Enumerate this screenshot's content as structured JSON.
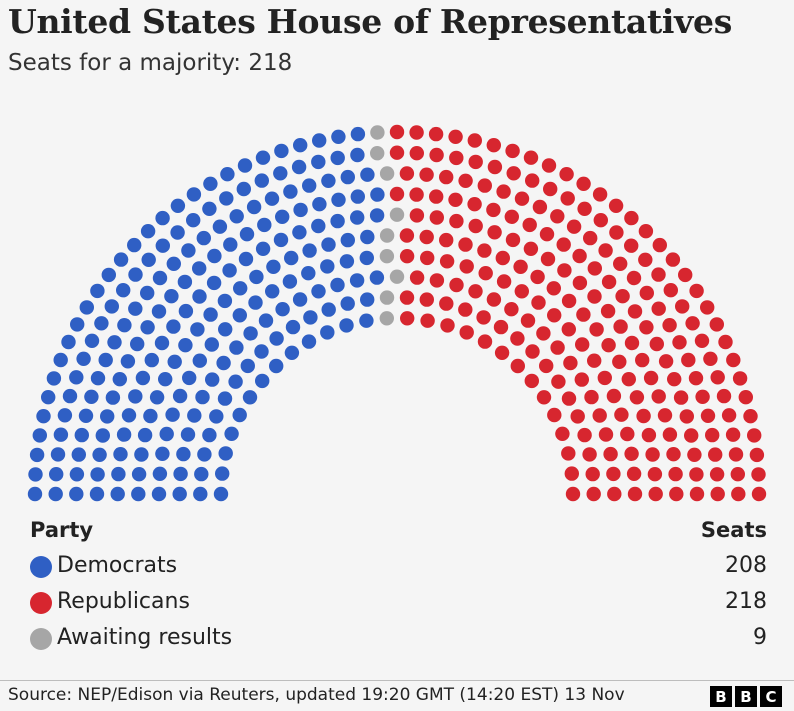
{
  "title": "United States House of Representatives",
  "subtitle": "Seats for a majority: 218",
  "colors": {
    "democrats": "#2f5fc4",
    "republicans": "#d7262f",
    "awaiting": "#a6a6a6",
    "background": "#f5f5f5"
  },
  "chart_data": {
    "type": "parliament",
    "total_seats": 435,
    "series": [
      {
        "name": "Democrats",
        "values": [
          208
        ]
      },
      {
        "name": "Awaiting results",
        "values": [
          9
        ]
      },
      {
        "name": "Republicans",
        "values": [
          218
        ]
      }
    ]
  },
  "legend": {
    "party_header": "Party",
    "seats_header": "Seats",
    "items": [
      {
        "name": "Democrats",
        "value": "208",
        "color": "#2f5fc4"
      },
      {
        "name": "Republicans",
        "value": "218",
        "color": "#d7262f"
      },
      {
        "name": "Awaiting results",
        "value": "9",
        "color": "#a6a6a6"
      }
    ]
  },
  "footer": {
    "source": "Source: NEP/Edison via Reuters, updated 19:20 GMT (14:20 EST) 13 Nov",
    "logo_letters": [
      "B",
      "B",
      "C"
    ]
  }
}
